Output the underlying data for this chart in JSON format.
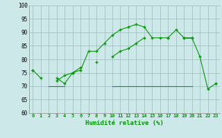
{
  "x": [
    0,
    1,
    2,
    3,
    4,
    5,
    6,
    7,
    8,
    9,
    10,
    11,
    12,
    13,
    14,
    15,
    16,
    17,
    18,
    19,
    20,
    21,
    22,
    23
  ],
  "line1": [
    76,
    73,
    null,
    73,
    71,
    75,
    76,
    83,
    83,
    86,
    89,
    91,
    92,
    93,
    92,
    88,
    88,
    88,
    91,
    88,
    88,
    81,
    69,
    71
  ],
  "line2": [
    76,
    null,
    null,
    72,
    74,
    75,
    77,
    null,
    79,
    null,
    81,
    83,
    84,
    86,
    88,
    null,
    null,
    88,
    null,
    88,
    88,
    null,
    null,
    71
  ],
  "line3": [
    null,
    null,
    70,
    70,
    70,
    null,
    null,
    null,
    null,
    null,
    70,
    70,
    70,
    70,
    70,
    70,
    70,
    70,
    70,
    70,
    70,
    null,
    null,
    70
  ],
  "xlabel": "Humidité relative (%)",
  "xlim": [
    -0.5,
    23.5
  ],
  "ylim": [
    60,
    100
  ],
  "yticks": [
    60,
    65,
    70,
    75,
    80,
    85,
    90,
    95,
    100
  ],
  "xticks": [
    0,
    1,
    2,
    3,
    4,
    5,
    6,
    7,
    8,
    9,
    10,
    11,
    12,
    13,
    14,
    15,
    16,
    17,
    18,
    19,
    20,
    21,
    22,
    23
  ],
  "bg_color": "#cce8e8",
  "grid_color": "#99bbbb",
  "line_color": "#009900",
  "marker": "+",
  "markersize": 3.5,
  "markeredgewidth": 1.0,
  "linewidth": 0.8,
  "tick_fontsize": 5.0,
  "xlabel_fontsize": 6.5
}
